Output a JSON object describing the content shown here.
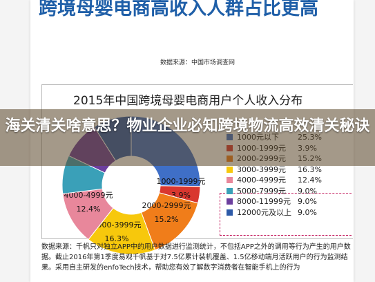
{
  "headline": "跨境母婴电商高收入人群占比更高",
  "source": "数据来源：中国市场调查网",
  "overlay_title": "海关清关啥意思？物业企业必知跨境物流高效清关秘诀",
  "footnote": "数据来源：千帆只对独立APP中的用户数据进行监测统计，不包括APP之外的调用等行为产生的用户数据。截止2016年第1季度易观千帆基于对7.5亿累计装机覆盖、1.5亿移动端月活跃用户的行为监测结果。采用自主研发的enfoTech技术，帮助您有效了解数字消费者在智能手机上的行为",
  "chart_data": {
    "type": "pie",
    "title": "2015年中国跨境母婴电商用户个人收入分布",
    "categories": [
      "1000元以下",
      "1000-1999元",
      "2000-2999元",
      "3000-3999元",
      "4000-4999元",
      "5000-7999元",
      "8000-11999元",
      "12000元及以上"
    ],
    "values": [
      25.3,
      3.9,
      15.2,
      16.3,
      12.4,
      9.0,
      9.0,
      9.0
    ],
    "slice_labels": [
      "",
      "1000-1999元",
      "2000-2999元",
      "3000-3999元",
      "4000-4999元",
      "",
      "",
      ""
    ],
    "legend_values": [
      "25.3%",
      "3.9%",
      "15.2%",
      "16.3%",
      "12.4%",
      "9.0%",
      "9.0%",
      "9.0%"
    ],
    "colors": [
      "#3f6fc7",
      "#d9372f",
      "#f07d1a",
      "#f7c80c",
      "#e8879b",
      "#3aa0b8",
      "#6c3f9e",
      "#2d5aa8"
    ],
    "legend_placement": "right"
  }
}
